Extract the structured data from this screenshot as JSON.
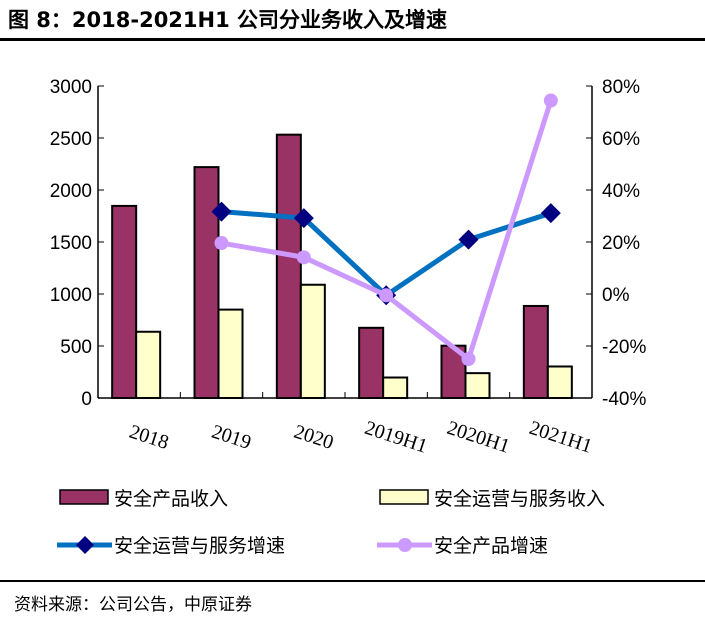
{
  "title": "图 8：2018-2021H1 公司分业务收入及增速",
  "source": "资料来源：公司公告，中原证券",
  "chart_data": {
    "type": "bar+line",
    "categories": [
      "2018",
      "2019",
      "2020",
      "2019H1",
      "2020H1",
      "2021H1"
    ],
    "y_left": {
      "range": [
        0,
        3000
      ],
      "ticks": [
        "0",
        "500",
        "1000",
        "1500",
        "2000",
        "2500",
        "3000"
      ]
    },
    "y_right": {
      "range": [
        -40,
        80
      ],
      "ticks": [
        "-40%",
        "-20%",
        "0%",
        "20%",
        "40%",
        "60%",
        "80%"
      ]
    },
    "series": [
      {
        "name": "安全产品收入",
        "type": "bar",
        "axis": "left",
        "color": "#993366",
        "values": [
          1847,
          2220,
          2532,
          675,
          503,
          885
        ]
      },
      {
        "name": "安全运营与服务收入",
        "type": "bar",
        "axis": "left",
        "color": "#FFFFCC",
        "values": [
          637,
          850,
          1089,
          197,
          239,
          303
        ]
      },
      {
        "name": "安全运营与服务增速",
        "type": "line",
        "axis": "right",
        "color": "#0070C0",
        "marker_color": "#000080",
        "marker": "diamond",
        "values": [
          null,
          31.7,
          29.2,
          -0.5,
          20.9,
          31.1
        ]
      },
      {
        "name": "安全产品增速",
        "type": "line",
        "axis": "right",
        "color": "#CC99FF",
        "marker": "circle",
        "values": [
          null,
          19.6,
          14.1,
          -0.5,
          -25.0,
          74.4
        ]
      }
    ],
    "legend": "bottom"
  }
}
